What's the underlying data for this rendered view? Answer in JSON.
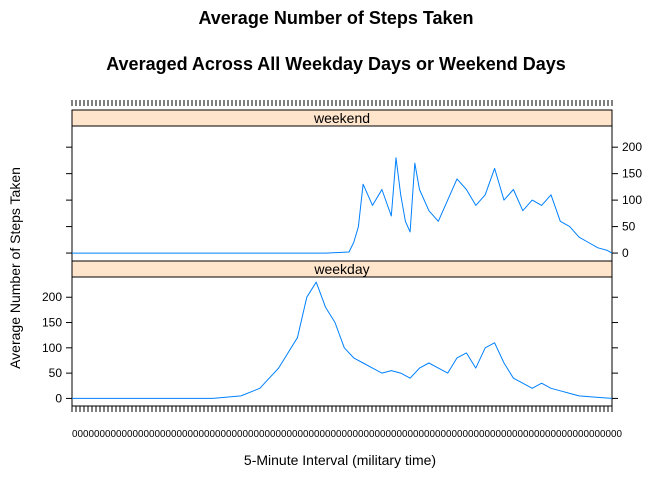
{
  "chart_data": {
    "type": "line",
    "title": "Average Number of Steps Taken",
    "subtitle": "Averaged Across All Weekday Days or Weekend Days",
    "xlabel": "5-Minute Interval (military time)",
    "ylabel": "Average Number of Steps Taken",
    "ylim": [
      -15,
      240
    ],
    "yticks": [
      0,
      50,
      100,
      150,
      200
    ],
    "grid": false,
    "series_color": "#0080ff",
    "strip_color": "#ffe5cc",
    "panels": [
      {
        "name": "weekend",
        "y_axis_side": "right",
        "series": [
          {
            "x": [
              0,
              30,
              60,
              90,
              120,
              150,
              180,
              210,
              240,
              270,
              295,
              300,
              305,
              310,
              320,
              330,
              340,
              345,
              350,
              355,
              360,
              365,
              370,
              380,
              390,
              400,
              410,
              420,
              430,
              440,
              450,
              460,
              470,
              480,
              490,
              500,
              510,
              520,
              530,
              540,
              550,
              560,
              570,
              575
            ],
            "y": [
              0,
              0,
              0,
              0,
              0,
              0,
              0,
              0,
              0,
              0,
              2,
              20,
              50,
              130,
              90,
              120,
              70,
              180,
              110,
              60,
              40,
              170,
              120,
              80,
              60,
              100,
              140,
              120,
              90,
              110,
              160,
              100,
              120,
              80,
              100,
              90,
              110,
              60,
              50,
              30,
              20,
              10,
              5,
              0
            ]
          }
        ]
      },
      {
        "name": "weekday",
        "y_axis_side": "left",
        "series": [
          {
            "x": [
              0,
              30,
              60,
              90,
              120,
              150,
              180,
              200,
              210,
              220,
              230,
              240,
              250,
              260,
              270,
              280,
              290,
              300,
              310,
              320,
              330,
              340,
              350,
              360,
              370,
              380,
              390,
              400,
              410,
              420,
              430,
              440,
              450,
              460,
              470,
              480,
              490,
              500,
              510,
              520,
              530,
              540,
              560,
              575
            ],
            "y": [
              0,
              0,
              0,
              0,
              0,
              0,
              5,
              20,
              40,
              60,
              90,
              120,
              200,
              230,
              180,
              150,
              100,
              80,
              70,
              60,
              50,
              55,
              50,
              40,
              60,
              70,
              60,
              50,
              80,
              90,
              60,
              100,
              110,
              70,
              40,
              30,
              20,
              30,
              20,
              15,
              10,
              5,
              2,
              0
            ]
          }
        ]
      }
    ]
  },
  "x_tick_text": "0000000000000000000000000000000000000000000000000000000000000000000000000000000000000000000000000000"
}
